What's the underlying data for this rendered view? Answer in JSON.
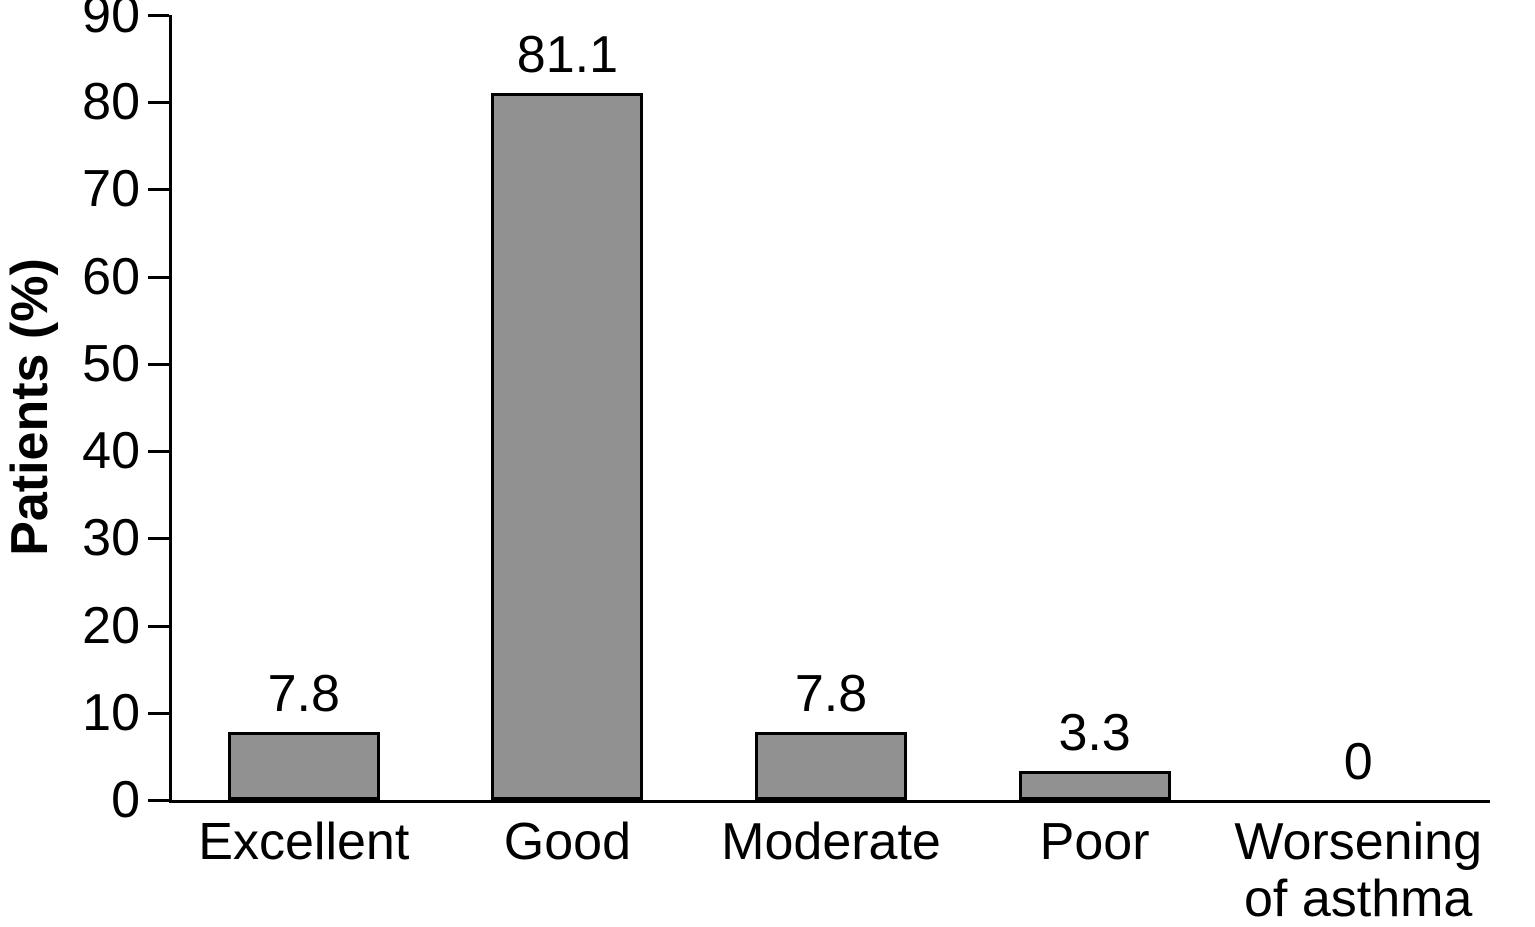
{
  "chart_data": {
    "type": "bar",
    "title": "",
    "categories": [
      "Excellent",
      "Good",
      "Moderate",
      "Poor",
      "Worsening of asthma"
    ],
    "values": [
      7.8,
      81.1,
      7.8,
      3.3,
      0
    ],
    "value_labels": [
      "7.8",
      "81.1",
      "7.8",
      "3.3",
      "0"
    ],
    "xlabel": "",
    "ylabel": "Patients (%)",
    "ylim": [
      0,
      90
    ],
    "ytick_step": 10,
    "ytick_labels": [
      "0",
      "10",
      "20",
      "30",
      "40",
      "50",
      "60",
      "70",
      "80",
      "90"
    ],
    "grid": false,
    "legend": "none",
    "bar_color": "#919191",
    "bar_border_color": "#000000",
    "axis_color": "#000000",
    "background_color": "#ffffff"
  }
}
